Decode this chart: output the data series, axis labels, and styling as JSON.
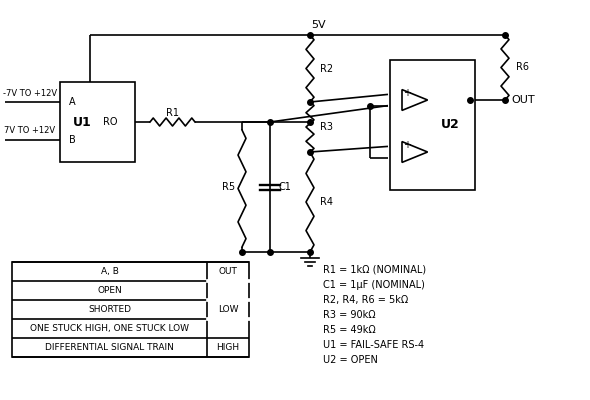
{
  "background_color": "#ffffff",
  "table": {
    "col1": [
      "A, B",
      "OPEN",
      "SHORTED",
      "ONE STUCK HIGH, ONE STUCK LOW",
      "DIFFERENTIAL SIGNAL TRAIN"
    ],
    "col2": [
      "OUT",
      "",
      "LOW",
      "",
      "HIGH"
    ]
  },
  "annotations": [
    "R1 = 1kΩ (NOMINAL)",
    "C1 = 1μF (NOMINAL)",
    "R2, R4, R6 = 5kΩ",
    "R3 = 90kΩ",
    "R5 = 49kΩ",
    "U1 = FAIL-SAFE RS-4",
    "U2 = OPEN"
  ],
  "circuit": {
    "line_color": "#000000",
    "line_width": 1.2
  }
}
